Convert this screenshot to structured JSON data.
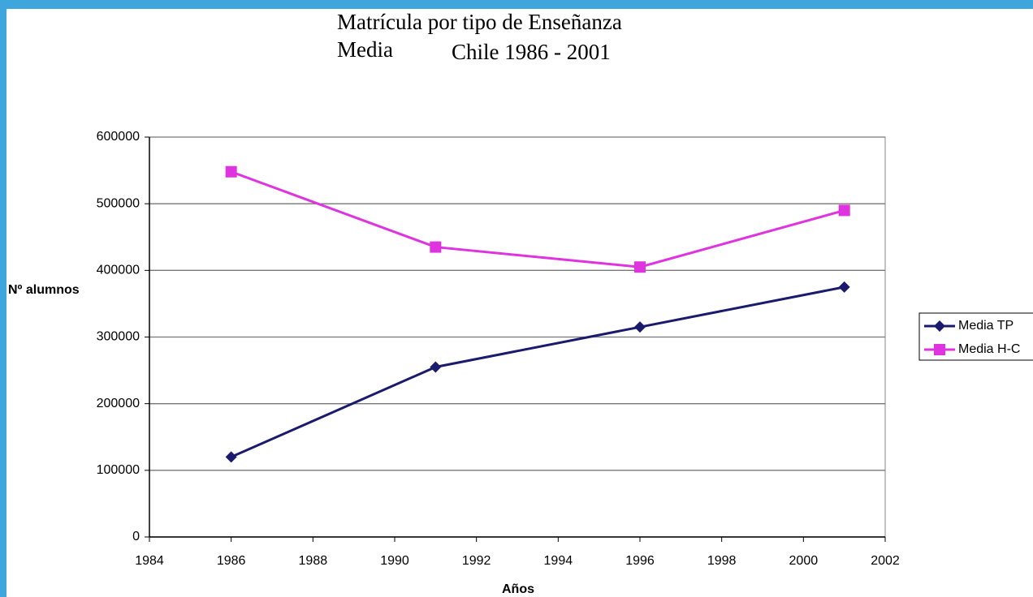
{
  "chart_data": {
    "type": "line",
    "title_lines": [
      "Matrícula por tipo de Enseñanza",
      "Media",
      "Chile 1986 - 2001"
    ],
    "xlabel": "Años",
    "ylabel": "Nº alumnos",
    "x": [
      1986,
      1991,
      1996,
      2001
    ],
    "series": [
      {
        "name": "Media TP",
        "color": "#1a1a6e",
        "marker": "diamond",
        "values": [
          120000,
          255000,
          315000,
          375000
        ]
      },
      {
        "name": "Media H-C",
        "color": "#e033e0",
        "marker": "square",
        "values": [
          548000,
          435000,
          405000,
          490000
        ]
      }
    ],
    "xlim": [
      1984,
      2002
    ],
    "xticks": [
      1984,
      1986,
      1988,
      1990,
      1992,
      1994,
      1996,
      1998,
      2000,
      2002
    ],
    "ylim": [
      0,
      600000
    ],
    "yticks": [
      0,
      100000,
      200000,
      300000,
      400000,
      500000,
      600000
    ],
    "grid": true,
    "legend": "right"
  }
}
